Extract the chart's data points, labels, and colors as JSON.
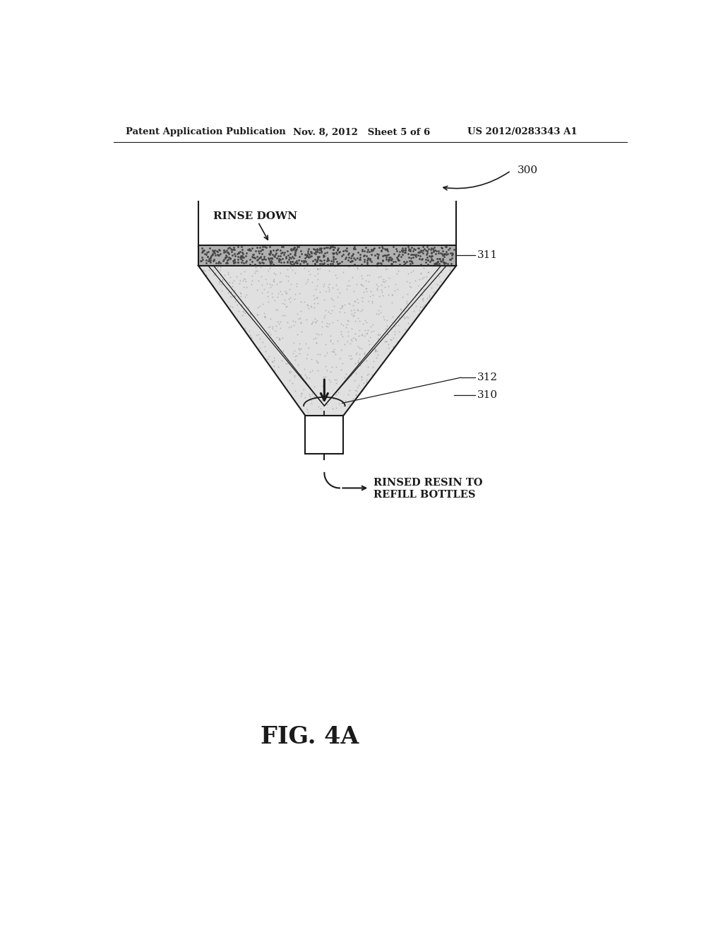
{
  "bg_color": "#ffffff",
  "header_left": "Patent Application Publication",
  "header_mid": "Nov. 8, 2012   Sheet 5 of 6",
  "header_right": "US 2012/0283343 A1",
  "fig_label": "FIG. 4A",
  "label_300": "300",
  "label_311": "311",
  "label_312": "312",
  "label_310": "310",
  "rinse_down_text": "RINSE DOWN",
  "rinsed_resin_text_1": "RINSED RESIN TO",
  "rinsed_resin_text_2": "REFILL BOTTLES",
  "line_color": "#1a1a1a",
  "text_color": "#1a1a1a",
  "funnel_fill": "#e0e0e0",
  "resin_band_fill": "#b0b0b0",
  "resin_dot_color": "#666666",
  "funnel_dot_color": "#999999"
}
